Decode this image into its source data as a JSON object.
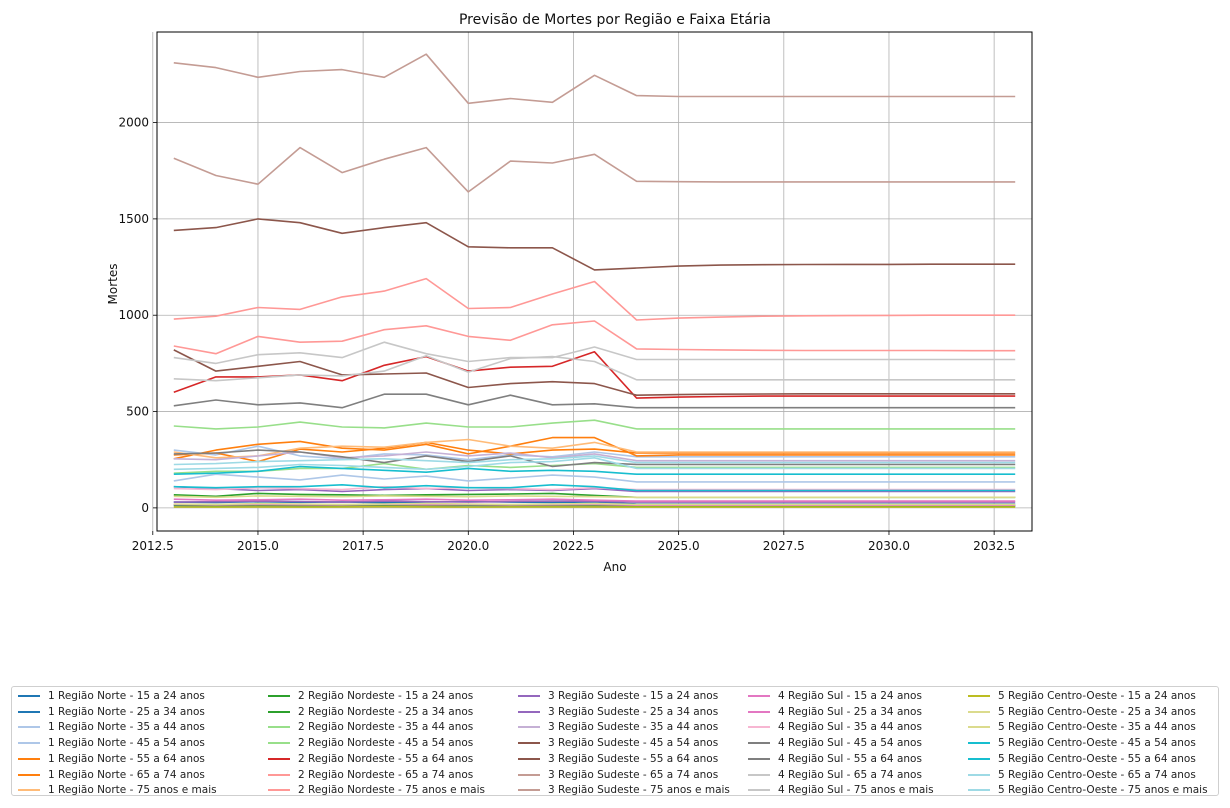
{
  "chart_data": {
    "type": "line",
    "title": "Previsão de Mortes por Região e Faixa Etária",
    "xlabel": "Ano",
    "ylabel": "Mortes",
    "xlim": [
      2012.6,
      2033.4
    ],
    "ylim": [
      -120,
      2470
    ],
    "xticks": [
      2012.5,
      2015.0,
      2017.5,
      2020.0,
      2022.5,
      2025.0,
      2027.5,
      2030.0,
      2032.5
    ],
    "xtick_labels": [
      "2012.5",
      "2015.0",
      "2017.5",
      "2020.0",
      "2022.5",
      "2025.0",
      "2027.5",
      "2030.0",
      "2032.5"
    ],
    "yticks": [
      0,
      500,
      1000,
      1500,
      2000
    ],
    "ytick_labels": [
      "0",
      "500",
      "1000",
      "1500",
      "2000"
    ],
    "grid": true,
    "legend_position": "bottom",
    "legend_columns": 5,
    "x": [
      2013,
      2014,
      2015,
      2016,
      2017,
      2018,
      2019,
      2020,
      2021,
      2022,
      2023,
      2024,
      2025,
      2026,
      2027,
      2028,
      2029,
      2030,
      2031,
      2032,
      2033
    ],
    "series": [
      {
        "name": "1 Região Norte - 15 a 24 anos",
        "color": "#1f77b4",
        "values": [
          12,
          10,
          11,
          10,
          9,
          11,
          10,
          12,
          11,
          10,
          11,
          9,
          9,
          9,
          9,
          9,
          9,
          9,
          9,
          9,
          9
        ]
      },
      {
        "name": "1 Região Norte - 25 a 34 anos",
        "color": "#1f77b4",
        "values": [
          30,
          28,
          32,
          29,
          31,
          27,
          30,
          33,
          30,
          28,
          31,
          20,
          20,
          20,
          20,
          20,
          20,
          20,
          20,
          20,
          20
        ]
      },
      {
        "name": "1 Região Norte - 35 a 44 anos",
        "color": "#aec7e8",
        "values": [
          140,
          175,
          160,
          145,
          170,
          150,
          165,
          140,
          155,
          170,
          160,
          135,
          135,
          135,
          135,
          135,
          135,
          135,
          135,
          135,
          135
        ]
      },
      {
        "name": "1 Região Norte - 45 a 54 anos",
        "color": "#aec7e8",
        "values": [
          300,
          275,
          320,
          270,
          255,
          280,
          275,
          250,
          275,
          265,
          290,
          265,
          265,
          265,
          265,
          265,
          265,
          265,
          265,
          265,
          265
        ]
      },
      {
        "name": "1 Região Norte - 55 a 64 anos",
        "color": "#ff7f0e",
        "values": [
          275,
          285,
          240,
          305,
          290,
          310,
          340,
          300,
          280,
          300,
          305,
          285,
          285,
          285,
          285,
          285,
          285,
          285,
          285,
          285,
          285
        ]
      },
      {
        "name": "1 Região Norte - 65 a 74 anos",
        "color": "#ff7f0e",
        "values": [
          255,
          300,
          330,
          345,
          310,
          300,
          330,
          280,
          320,
          365,
          365,
          270,
          275,
          275,
          275,
          275,
          275,
          275,
          275,
          275,
          275
        ]
      },
      {
        "name": "1 Região Norte - 75 anos e mais",
        "color": "#ffbb78",
        "values": [
          290,
          260,
          270,
          310,
          320,
          315,
          340,
          355,
          320,
          310,
          340,
          290,
          290,
          290,
          290,
          290,
          290,
          290,
          290,
          290,
          290
        ]
      },
      {
        "name": "2 Região Nordeste - 15 a 24 anos",
        "color": "#2ca02c",
        "values": [
          15,
          12,
          14,
          13,
          12,
          14,
          12,
          15,
          13,
          12,
          14,
          10,
          10,
          10,
          10,
          10,
          10,
          10,
          10,
          10,
          10
        ]
      },
      {
        "name": "2 Região Nordeste - 25 a 34 anos",
        "color": "#2ca02c",
        "values": [
          68,
          60,
          75,
          70,
          68,
          65,
          68,
          70,
          72,
          75,
          65,
          55,
          55,
          55,
          55,
          55,
          55,
          55,
          55,
          55,
          55
        ]
      },
      {
        "name": "2 Região Nordeste - 35 a 44 anos",
        "color": "#98df8a",
        "values": [
          180,
          190,
          190,
          205,
          205,
          230,
          200,
          220,
          210,
          220,
          230,
          210,
          210,
          210,
          210,
          210,
          210,
          210,
          210,
          210,
          210
        ]
      },
      {
        "name": "2 Região Nordeste - 45 a 54 anos",
        "color": "#98df8a",
        "values": [
          425,
          410,
          420,
          445,
          420,
          415,
          440,
          420,
          420,
          440,
          455,
          410,
          410,
          410,
          410,
          410,
          410,
          410,
          410,
          410,
          410
        ]
      },
      {
        "name": "2 Região Nordeste - 55 a 64 anos",
        "color": "#d62728",
        "values": [
          600,
          680,
          680,
          690,
          660,
          740,
          785,
          710,
          730,
          735,
          810,
          570,
          575,
          578,
          580,
          580,
          580,
          580,
          580,
          580,
          580
        ]
      },
      {
        "name": "2 Região Nordeste - 65 a 74 anos",
        "color": "#ff9896",
        "values": [
          840,
          800,
          890,
          860,
          865,
          925,
          945,
          890,
          870,
          950,
          970,
          825,
          822,
          820,
          818,
          817,
          817,
          817,
          817,
          816,
          816
        ]
      },
      {
        "name": "2 Região Nordeste - 75 anos e mais",
        "color": "#ff9896",
        "values": [
          980,
          995,
          1040,
          1030,
          1095,
          1125,
          1190,
          1035,
          1040,
          1110,
          1175,
          975,
          985,
          990,
          995,
          997,
          998,
          999,
          1000,
          1000,
          1000
        ]
      },
      {
        "name": "3 Região Sudeste - 15 a 24 anos",
        "color": "#9467bd",
        "values": [
          30,
          32,
          35,
          33,
          30,
          35,
          32,
          30,
          33,
          35,
          34,
          30,
          30,
          30,
          30,
          30,
          30,
          30,
          30,
          30,
          30
        ]
      },
      {
        "name": "3 Região Sudeste - 25 a 34 anos",
        "color": "#9467bd",
        "values": [
          110,
          100,
          90,
          95,
          85,
          95,
          100,
          90,
          95,
          90,
          100,
          85,
          85,
          85,
          85,
          85,
          85,
          85,
          85,
          85,
          85
        ]
      },
      {
        "name": "3 Região Sudeste - 35 a 44 anos",
        "color": "#c5b0d5",
        "values": [
          255,
          250,
          270,
          290,
          260,
          270,
          290,
          270,
          285,
          260,
          280,
          245,
          245,
          245,
          245,
          245,
          245,
          245,
          245,
          245,
          245
        ]
      },
      {
        "name": "3 Região Sudeste - 45 a 54 anos",
        "color": "#8c564b",
        "values": [
          820,
          710,
          735,
          760,
          690,
          695,
          700,
          625,
          645,
          655,
          645,
          585,
          588,
          590,
          591,
          592,
          592,
          592,
          592,
          592,
          592
        ]
      },
      {
        "name": "3 Região Sudeste - 55 a 64 anos",
        "color": "#8c564b",
        "values": [
          1440,
          1455,
          1500,
          1480,
          1425,
          1455,
          1480,
          1355,
          1350,
          1350,
          1235,
          1245,
          1255,
          1260,
          1262,
          1263,
          1264,
          1264,
          1265,
          1265,
          1265
        ]
      },
      {
        "name": "3 Região Sudeste - 65 a 74 anos",
        "color": "#c49c94",
        "values": [
          1815,
          1725,
          1680,
          1870,
          1740,
          1810,
          1870,
          1640,
          1800,
          1790,
          1835,
          1695,
          1693,
          1692,
          1692,
          1692,
          1692,
          1692,
          1692,
          1692,
          1692
        ]
      },
      {
        "name": "3 Região Sudeste - 75 anos e mais",
        "color": "#c49c94",
        "values": [
          2310,
          2285,
          2235,
          2265,
          2275,
          2235,
          2355,
          2100,
          2125,
          2105,
          2245,
          2140,
          2135,
          2135,
          2135,
          2135,
          2135,
          2135,
          2135,
          2135,
          2135
        ]
      },
      {
        "name": "4 Região Sul - 15 a 24 anos",
        "color": "#e377c2",
        "values": [
          18,
          15,
          17,
          16,
          15,
          18,
          16,
          17,
          15,
          16,
          17,
          14,
          14,
          14,
          14,
          14,
          14,
          14,
          14,
          14,
          14
        ]
      },
      {
        "name": "4 Região Sul - 25 a 34 anos",
        "color": "#e377c2",
        "values": [
          45,
          40,
          42,
          45,
          40,
          42,
          45,
          40,
          42,
          45,
          40,
          35,
          35,
          35,
          35,
          35,
          35,
          35,
          35,
          35,
          35
        ]
      },
      {
        "name": "4 Região Sul - 35 a 44 anos",
        "color": "#f7b6d2",
        "values": [
          100,
          95,
          105,
          100,
          95,
          110,
          100,
          105,
          100,
          95,
          105,
          95,
          95,
          95,
          95,
          95,
          95,
          95,
          95,
          95,
          95
        ]
      },
      {
        "name": "4 Região Sul - 45 a 54 anos",
        "color": "#7f7f7f",
        "values": [
          280,
          285,
          300,
          290,
          265,
          235,
          270,
          240,
          270,
          215,
          235,
          225,
          225,
          225,
          225,
          225,
          225,
          225,
          225,
          225,
          225
        ]
      },
      {
        "name": "4 Região Sul - 55 a 64 anos",
        "color": "#7f7f7f",
        "values": [
          530,
          560,
          535,
          545,
          520,
          590,
          590,
          535,
          585,
          535,
          540,
          520,
          520,
          520,
          520,
          520,
          520,
          520,
          520,
          520,
          520
        ]
      },
      {
        "name": "4 Região Sul - 65 a 74 anos",
        "color": "#c7c7c7",
        "values": [
          670,
          660,
          675,
          690,
          685,
          710,
          790,
          705,
          775,
          785,
          760,
          665,
          665,
          665,
          665,
          665,
          665,
          665,
          665,
          665,
          665
        ]
      },
      {
        "name": "4 Região Sul - 75 anos e mais",
        "color": "#c7c7c7",
        "values": [
          780,
          750,
          795,
          805,
          780,
          860,
          800,
          760,
          780,
          780,
          835,
          770,
          770,
          770,
          770,
          770,
          770,
          770,
          770,
          770,
          770
        ]
      },
      {
        "name": "5 Região Centro-Oeste - 15 a 24 anos",
        "color": "#bcbd22",
        "values": [
          5,
          4,
          5,
          4,
          5,
          6,
          5,
          4,
          5,
          5,
          5,
          4,
          4,
          4,
          4,
          4,
          4,
          4,
          4,
          4,
          4
        ]
      },
      {
        "name": "5 Região Centro-Oeste - 25 a 34 anos",
        "color": "#dbdb8d",
        "values": [
          20,
          18,
          22,
          20,
          18,
          20,
          22,
          20,
          18,
          20,
          22,
          18,
          18,
          18,
          18,
          18,
          18,
          18,
          18,
          18,
          18
        ]
      },
      {
        "name": "5 Região Centro-Oeste - 35 a 44 anos",
        "color": "#dbdb8d",
        "values": [
          60,
          55,
          62,
          60,
          58,
          62,
          60,
          58,
          62,
          60,
          58,
          55,
          55,
          55,
          55,
          55,
          55,
          55,
          55,
          55,
          55
        ]
      },
      {
        "name": "5 Região Centro-Oeste - 45 a 54 anos",
        "color": "#17becf",
        "values": [
          110,
          105,
          110,
          110,
          120,
          105,
          115,
          105,
          105,
          120,
          110,
          90,
          90,
          90,
          90,
          90,
          90,
          90,
          90,
          90,
          90
        ]
      },
      {
        "name": "5 Região Centro-Oeste - 55 a 64 anos",
        "color": "#17becf",
        "values": [
          175,
          180,
          190,
          215,
          205,
          195,
          185,
          205,
          190,
          195,
          190,
          175,
          175,
          175,
          175,
          175,
          175,
          175,
          175,
          175,
          175
        ]
      },
      {
        "name": "5 Região Centro-Oeste - 65 a 74 anos",
        "color": "#9edae5",
        "values": [
          200,
          205,
          210,
          225,
          220,
          210,
          200,
          215,
          235,
          240,
          260,
          205,
          205,
          205,
          205,
          205,
          205,
          205,
          205,
          205,
          205
        ]
      },
      {
        "name": "5 Região Centro-Oeste - 75 anos e mais",
        "color": "#9edae5",
        "values": [
          225,
          230,
          240,
          245,
          250,
          255,
          245,
          235,
          250,
          255,
          270,
          235,
          235,
          235,
          235,
          235,
          235,
          235,
          235,
          235,
          235
        ]
      }
    ]
  }
}
